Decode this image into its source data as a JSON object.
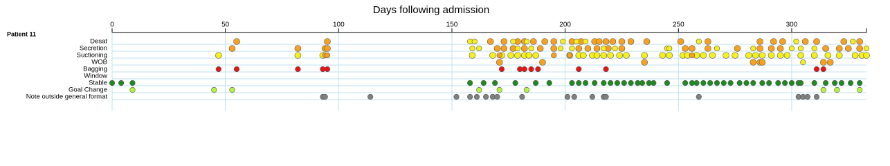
{
  "chart_data": {
    "type": "scatter",
    "title": "Days following admission",
    "panel_label": "Patient 11",
    "xlim": [
      0,
      333
    ],
    "xticks": [
      0,
      50,
      100,
      150,
      200,
      250,
      300
    ],
    "grid": true,
    "rows": [
      {
        "label": "Desat",
        "groups": [
          {
            "color": "#f7a11e",
            "x": [
              55,
              95,
              167,
              173,
              179,
              182,
              186,
              191,
              195,
              203,
              207,
              213,
              215,
              218,
              221,
              225,
              229,
              236,
              251,
              263,
              286,
              292,
              296,
              306,
              311,
              323,
              330
            ]
          },
          {
            "color": "#f5f01a",
            "x": [
              158,
              160,
              177,
              183,
              199,
              205,
              209,
              259,
              302,
              327
            ]
          }
        ]
      },
      {
        "label": "Secretion",
        "groups": [
          {
            "color": "#f7a11e",
            "x": [
              53,
              82,
              94,
              95,
              170,
              173,
              177,
              182,
              189,
              195,
              206,
              210,
              214,
              219,
              225,
              253,
              256,
              263,
              276,
              286,
              291,
              295,
              315,
              321,
              325,
              330
            ]
          },
          {
            "color": "#f5f01a",
            "x": [
              159,
              162,
              179,
              185,
              198,
              203,
              217,
              222,
              245,
              246,
              267,
              283,
              300,
              304,
              310,
              333
            ]
          }
        ]
      },
      {
        "label": "Suctioning",
        "groups": [
          {
            "color": "#f5f01a",
            "x": [
              47,
              82,
              93,
              159,
              168,
              172,
              176,
              179,
              182,
              184,
              187,
              202,
              206,
              208,
              212,
              214,
              217,
              220,
              224,
              227,
              235,
              243,
              246,
              252,
              254,
              258,
              261,
              265,
              271,
              275,
              281,
              284,
              287,
              291,
              295,
              298,
              304,
              310,
              316,
              321,
              328,
              331,
              333
            ]
          },
          {
            "color": "#f7a11e",
            "x": [
              94,
              95,
              171,
              195,
              202,
              256
            ]
          }
        ]
      },
      {
        "label": "WOB",
        "groups": [
          {
            "color": "#f7a11e",
            "x": [
              171,
              190,
              235,
              283,
              286,
              287,
              314,
              317
            ]
          },
          {
            "color": "#f5f01a",
            "x": [
              305
            ]
          }
        ]
      },
      {
        "label": "Bagging",
        "groups": [
          {
            "color": "#e81414",
            "x": [
              47,
              55,
              82,
              93,
              95,
              172,
              180,
              182,
              185,
              188,
              206,
              218,
              311,
              314
            ]
          }
        ]
      },
      {
        "label": "Window",
        "groups": []
      },
      {
        "label": "Stable",
        "groups": [
          {
            "color": "#1f8a1f",
            "x": [
              0,
              4,
              9,
              158,
              164,
              169,
              178,
              187,
              193,
              203,
              206,
              209,
              213,
              217,
              220,
              223,
              226,
              229,
              232,
              234,
              237,
              239,
              245,
              253,
              256,
              258,
              261,
              264,
              267,
              270,
              273,
              277,
              280,
              283,
              287,
              290,
              294,
              297,
              300,
              303,
              304,
              310,
              315,
              319,
              322,
              326,
              330
            ]
          }
        ]
      },
      {
        "label": "Goal Change",
        "groups": [
          {
            "color": "#b2f53a",
            "x": [
              9,
              45,
              53,
              162,
              171,
              183,
              314,
              320,
              330
            ]
          }
        ]
      },
      {
        "label": "Note outside general format",
        "groups": [
          {
            "color": "#808080",
            "x": [
              93,
              94,
              114,
              152,
              158,
              161,
              165,
              168,
              170,
              181,
              201,
              204,
              212,
              217,
              218,
              259,
              303,
              305,
              307,
              311
            ]
          }
        ]
      }
    ]
  }
}
